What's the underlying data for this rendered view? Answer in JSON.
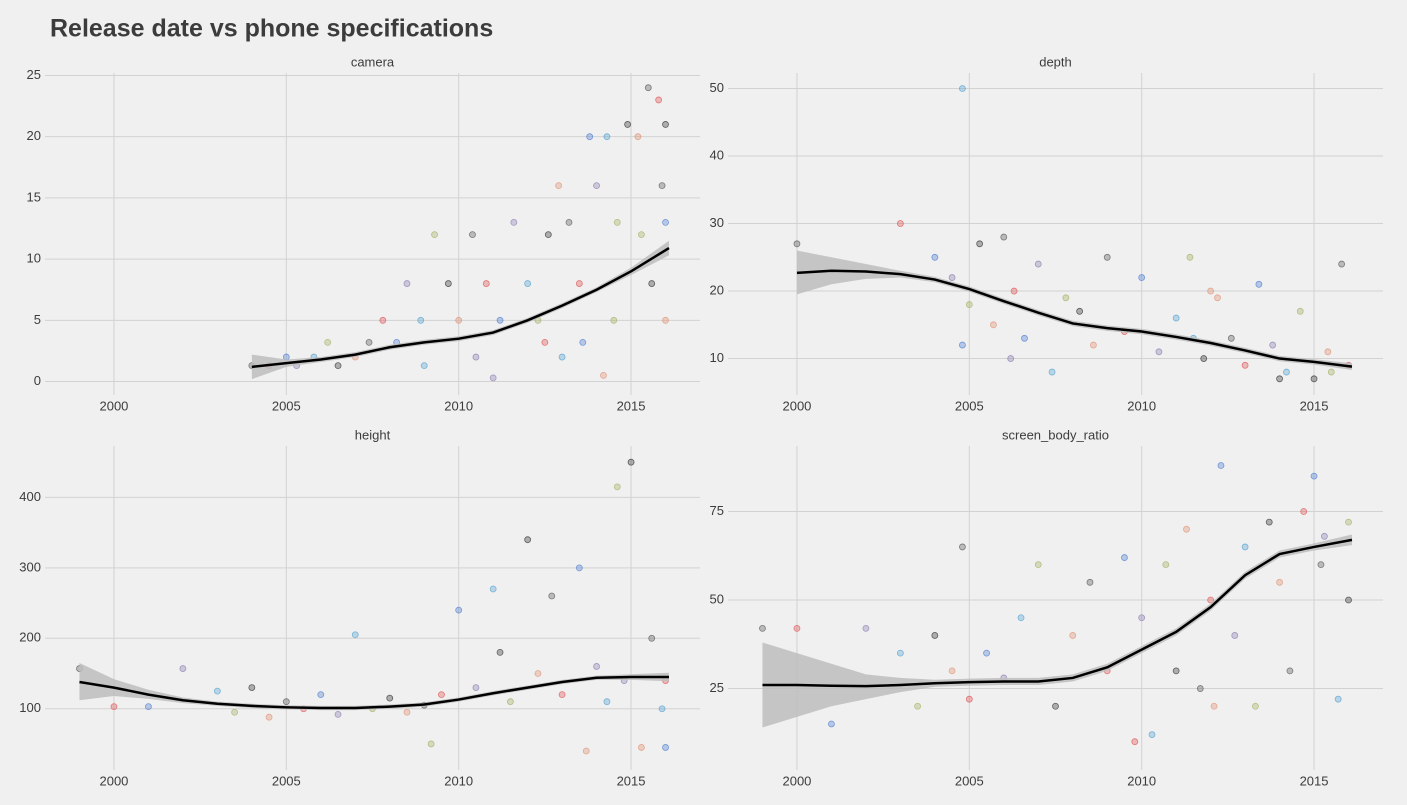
{
  "title": "Release date vs phone specifications",
  "chart_data": [
    {
      "type": "scatter",
      "title": "camera",
      "xlim": [
        1998,
        2017
      ],
      "ylim": [
        -1.1,
        25.2
      ],
      "xticks": [
        2000,
        2005,
        2010,
        2015
      ],
      "yticks": [
        0,
        5,
        10,
        15,
        20,
        25
      ],
      "grid": true,
      "point_colors": [
        "#555555",
        "#e05050",
        "#4a7bd0",
        "#8a7ab0",
        "#50a0d0",
        "#a0b060",
        "#303030",
        "#e09070"
      ],
      "x": [
        2004.0,
        2004.5,
        2005.0,
        2005.3,
        2005.8,
        2006.2,
        2006.5,
        2007.0,
        2007.4,
        2007.8,
        2008.2,
        2008.5,
        2008.9,
        2009.3,
        2009.7,
        2010.0,
        2010.4,
        2010.8,
        2011.2,
        2011.6,
        2012.0,
        2012.3,
        2012.6,
        2012.9,
        2013.2,
        2013.5,
        2013.8,
        2014.0,
        2014.3,
        2014.6,
        2014.9,
        2015.2,
        2015.5,
        2015.8,
        2016.0,
        2011.0,
        2013.0,
        2014.5,
        2015.6,
        2016.0,
        2015.9,
        2012.5,
        2013.6,
        2010.5,
        2009.0,
        2015.3,
        2016.0,
        2014.2
      ],
      "y": [
        1.3,
        1.3,
        2,
        1.3,
        2,
        3.2,
        1.3,
        2,
        3.2,
        5,
        3.2,
        8,
        5,
        12,
        8,
        5,
        12,
        8,
        5,
        13,
        8,
        5,
        12,
        16,
        13,
        8,
        20,
        16,
        20,
        13,
        21,
        20,
        24,
        23,
        13,
        0.3,
        2,
        5,
        8,
        5,
        16,
        3.2,
        3.2,
        2,
        1.3,
        12,
        21,
        0.5
      ],
      "smooth": {
        "color": "#000000",
        "band_color": "#bdbdbd",
        "x": [
          2004,
          2005,
          2006,
          2007,
          2008,
          2009,
          2010,
          2011,
          2012,
          2013,
          2014,
          2015,
          2016.1
        ],
        "y": [
          1.2,
          1.5,
          1.8,
          2.2,
          2.8,
          3.2,
          3.5,
          4.0,
          5.0,
          6.2,
          7.5,
          9.0,
          10.9
        ],
        "lower": [
          0.2,
          1.2,
          1.6,
          2.0,
          2.6,
          3.0,
          3.3,
          3.8,
          4.8,
          6.0,
          7.3,
          8.7,
          10.3
        ],
        "upper": [
          2.2,
          1.8,
          2.0,
          2.4,
          3.0,
          3.4,
          3.7,
          4.2,
          5.2,
          6.4,
          7.7,
          9.3,
          11.5
        ]
      }
    },
    {
      "type": "scatter",
      "title": "depth",
      "xlim": [
        1998,
        2017
      ],
      "ylim": [
        4.6,
        52.3
      ],
      "xticks": [
        2000,
        2005,
        2010,
        2015
      ],
      "yticks": [
        10,
        20,
        30,
        40,
        50
      ],
      "grid": true,
      "point_colors": [
        "#555555",
        "#e05050",
        "#4a7bd0",
        "#8a7ab0",
        "#50a0d0",
        "#a0b060",
        "#303030",
        "#e09070"
      ],
      "x": [
        2000,
        2003,
        2004,
        2004.5,
        2004.8,
        2005,
        2005.3,
        2005.7,
        2006,
        2006.3,
        2006.6,
        2007,
        2007.4,
        2007.8,
        2008.2,
        2008.6,
        2009,
        2009.5,
        2010,
        2010.5,
        2011,
        2011.4,
        2011.8,
        2012.2,
        2012.6,
        2013,
        2013.4,
        2013.8,
        2014.2,
        2014.6,
        2015,
        2015.4,
        2015.8,
        2016,
        2004.8,
        2006.2,
        2011.5,
        2015.5,
        2014,
        2012
      ],
      "y": [
        27,
        30,
        25,
        22,
        50,
        18,
        27,
        15,
        28,
        20,
        13,
        24,
        8,
        19,
        17,
        12,
        25,
        14,
        22,
        11,
        16,
        25,
        10,
        19,
        13,
        9,
        21,
        12,
        8,
        17,
        7,
        11,
        24,
        9,
        12,
        10,
        13,
        8,
        7,
        20
      ],
      "smooth": {
        "color": "#000000",
        "band_color": "#bdbdbd",
        "x": [
          2000,
          2001,
          2002,
          2003,
          2004,
          2005,
          2006,
          2007,
          2008,
          2009,
          2010,
          2011,
          2012,
          2013,
          2014,
          2015,
          2016.1
        ],
        "y": [
          22.7,
          23,
          22.9,
          22.5,
          21.7,
          20.3,
          18.5,
          16.8,
          15.2,
          14.5,
          14,
          13.2,
          12.3,
          11.2,
          10,
          9.5,
          8.8
        ],
        "lower": [
          19.5,
          21,
          21.8,
          22,
          21.3,
          19.9,
          18.1,
          16.4,
          14.8,
          14.1,
          13.6,
          12.8,
          11.9,
          10.8,
          9.6,
          9.1,
          8.3
        ],
        "upper": [
          26,
          25,
          24,
          23,
          22.1,
          20.7,
          18.9,
          17.2,
          15.6,
          14.9,
          14.4,
          13.6,
          12.7,
          11.6,
          10.4,
          9.9,
          9.3
        ]
      }
    },
    {
      "type": "scatter",
      "title": "height",
      "xlim": [
        1998,
        2017
      ],
      "ylim": [
        13,
        473
      ],
      "xticks": [
        2000,
        2005,
        2010,
        2015
      ],
      "yticks": [
        100,
        200,
        300,
        400
      ],
      "grid": true,
      "point_colors": [
        "#555555",
        "#e05050",
        "#4a7bd0",
        "#8a7ab0",
        "#50a0d0",
        "#a0b060",
        "#303030",
        "#e09070"
      ],
      "x": [
        1999,
        2000,
        2001,
        2002,
        2003,
        2003.5,
        2004,
        2004.5,
        2005,
        2005.5,
        2006,
        2006.5,
        2007,
        2007.5,
        2008,
        2008.5,
        2009,
        2009.5,
        2010,
        2010.5,
        2011,
        2011.5,
        2012,
        2012.3,
        2012.7,
        2013,
        2013.5,
        2014,
        2014.3,
        2014.6,
        2015,
        2015.3,
        2015.6,
        2016,
        2016,
        2014.8,
        2015.9,
        2009.2,
        2011.2,
        2013.7
      ],
      "y": [
        157,
        103,
        103,
        157,
        125,
        95,
        130,
        88,
        110,
        100,
        120,
        92,
        205,
        100,
        115,
        95,
        105,
        120,
        240,
        130,
        270,
        110,
        340,
        150,
        260,
        120,
        300,
        160,
        110,
        415,
        450,
        45,
        200,
        140,
        45,
        140,
        100,
        50,
        180,
        40
      ],
      "smooth": {
        "color": "#000000",
        "band_color": "#bdbdbd",
        "x": [
          1999,
          2000,
          2001,
          2002,
          2003,
          2004,
          2005,
          2006,
          2007,
          2008,
          2009,
          2010,
          2011,
          2012,
          2013,
          2014,
          2015,
          2016.1
        ],
        "y": [
          138,
          130,
          120,
          112,
          107,
          104,
          102,
          101,
          101,
          103,
          106,
          113,
          122,
          130,
          138,
          144,
          145,
          145
        ],
        "lower": [
          112,
          118,
          114,
          108,
          104,
          101,
          99,
          98,
          98,
          100,
          103,
          110,
          119,
          127,
          135,
          141,
          141,
          139
        ],
        "upper": [
          165,
          142,
          127,
          116,
          110,
          107,
          105,
          104,
          104,
          106,
          109,
          116,
          125,
          133,
          141,
          147,
          149,
          151
        ]
      }
    },
    {
      "type": "scatter",
      "title": "screen_body_ratio",
      "xlim": [
        1998,
        2017
      ],
      "ylim": [
        2,
        93.5
      ],
      "xticks": [
        2000,
        2005,
        2010,
        2015
      ],
      "yticks": [
        25,
        50,
        75
      ],
      "grid": true,
      "point_colors": [
        "#555555",
        "#e05050",
        "#4a7bd0",
        "#8a7ab0",
        "#50a0d0",
        "#a0b060",
        "#303030",
        "#e09070"
      ],
      "x": [
        1999,
        2000,
        2001,
        2002,
        2003,
        2003.5,
        2004,
        2004.5,
        2004.8,
        2005,
        2005.5,
        2006,
        2006.5,
        2007,
        2007.5,
        2008,
        2008.5,
        2009,
        2009.5,
        2010,
        2010.3,
        2010.7,
        2011,
        2011.3,
        2011.7,
        2012,
        2012.3,
        2012.7,
        2013,
        2013.3,
        2013.7,
        2014,
        2014.3,
        2014.7,
        2015,
        2015.3,
        2015.7,
        2016,
        2016,
        2012.1,
        2015.2,
        2009.8
      ],
      "y": [
        42,
        42,
        15,
        42,
        35,
        20,
        40,
        30,
        65,
        22,
        35,
        28,
        45,
        60,
        20,
        40,
        55,
        30,
        62,
        45,
        12,
        60,
        30,
        70,
        25,
        50,
        88,
        40,
        65,
        20,
        72,
        55,
        30,
        75,
        85,
        68,
        22,
        72,
        50,
        20,
        60,
        10
      ],
      "smooth": {
        "color": "#000000",
        "band_color": "#bdbdbd",
        "x": [
          1999,
          2000,
          2001,
          2002,
          2003,
          2004,
          2005,
          2006,
          2007,
          2008,
          2009,
          2010,
          2011,
          2012,
          2013,
          2014,
          2015,
          2016.1
        ],
        "y": [
          26,
          26,
          25.8,
          25.7,
          26,
          26.5,
          26.8,
          27,
          27,
          28,
          31,
          36,
          41,
          48,
          57,
          63,
          65,
          67
        ],
        "lower": [
          14,
          17,
          20,
          22,
          24,
          25.5,
          25.8,
          26,
          26,
          27,
          30,
          35,
          40,
          47,
          56,
          62,
          64,
          65.5
        ],
        "upper": [
          38,
          35,
          32,
          29,
          28,
          27.5,
          27.8,
          28,
          28,
          29,
          32,
          37,
          42,
          49,
          58,
          64,
          66,
          68.5
        ]
      }
    }
  ]
}
